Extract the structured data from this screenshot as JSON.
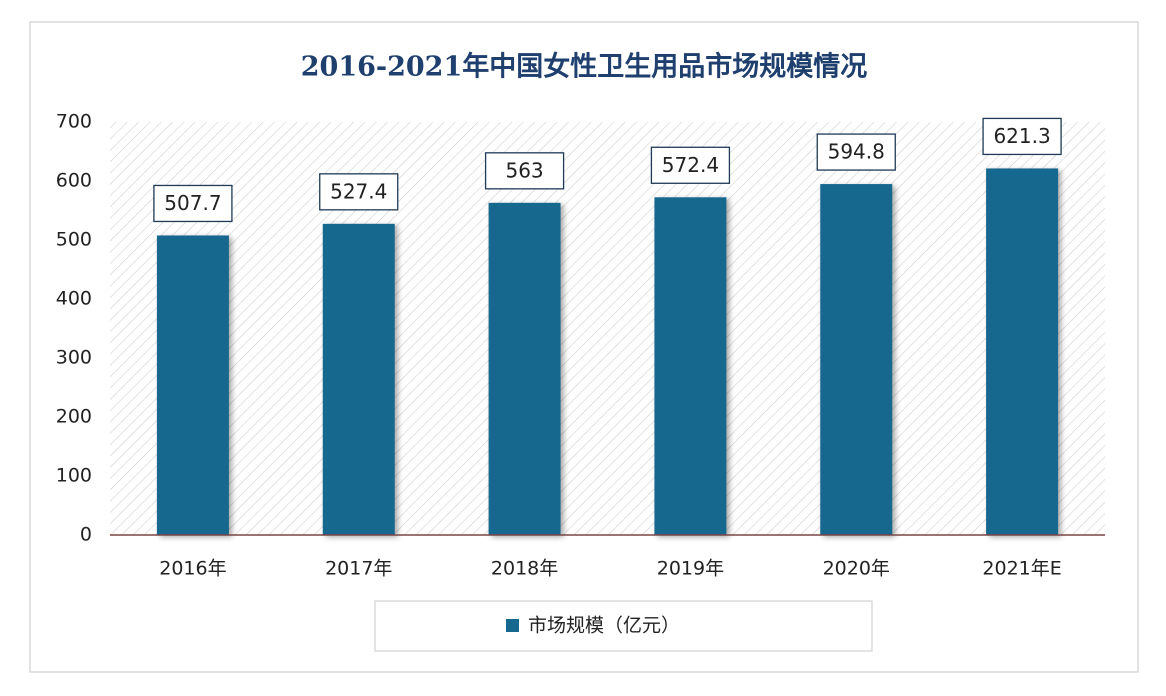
{
  "chart_data": {
    "type": "bar",
    "title": "2016-2021年中国女性卫生用品市场规模情况",
    "categories": [
      "2016年",
      "2017年",
      "2018年",
      "2019年",
      "2020年",
      "2021年E"
    ],
    "series": [
      {
        "name": "市场规模（亿元）",
        "color": "#17688f",
        "values": [
          507.7,
          527.4,
          563,
          572.4,
          594.8,
          621.3
        ]
      }
    ],
    "ylim": [
      0,
      700
    ],
    "yticks": [
      0,
      100,
      200,
      300,
      400,
      500,
      600,
      700
    ],
    "grid": false,
    "legend": "bottom"
  }
}
